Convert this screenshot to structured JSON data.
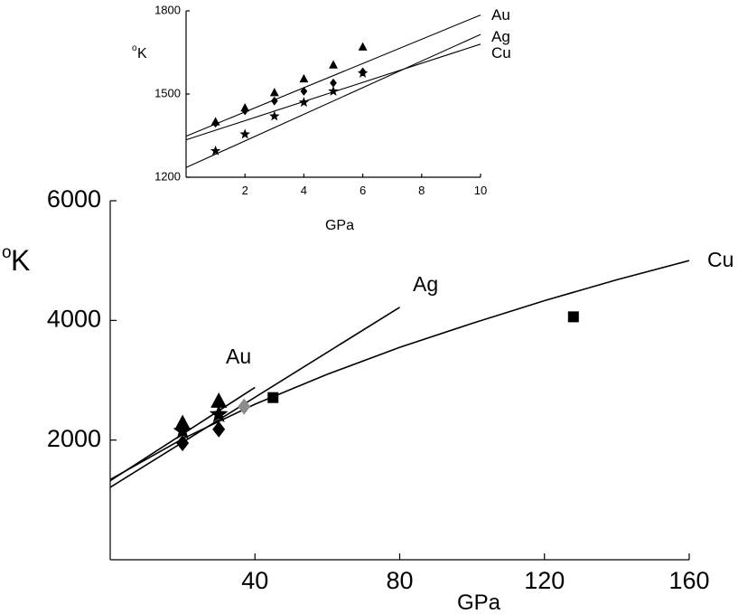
{
  "colors": {
    "ink": "#000000",
    "grey_marker": "#8c8c8c",
    "background": "#ffffff"
  },
  "chart_data": [
    {
      "id": "main",
      "type": "scatter",
      "title": "",
      "xlabel": "GPa",
      "ylabel_superscript": "o",
      "ylabel": "K",
      "xlim": [
        0,
        160
      ],
      "ylim": [
        0,
        6000
      ],
      "x_ticks": [
        40,
        80,
        120,
        160
      ],
      "y_ticks": [
        2000,
        4000,
        6000
      ],
      "x_tick_labels": [
        "40",
        "80",
        "120",
        "160"
      ],
      "y_tick_labels": [
        "2000",
        "4000",
        "6000"
      ],
      "grid": false,
      "lines": [
        {
          "name": "Au",
          "label": "Au",
          "x": [
            0,
            40
          ],
          "y": [
            1320,
            2880
          ]
        },
        {
          "name": "Ag",
          "label": "Ag",
          "x": [
            0,
            80
          ],
          "y": [
            1210,
            4220
          ]
        },
        {
          "name": "Cu",
          "label": "Cu",
          "x": [
            0,
            20,
            40,
            60,
            80,
            100,
            120,
            140,
            160
          ],
          "y": [
            1340,
            2020,
            2600,
            3100,
            3550,
            3950,
            4330,
            4680,
            5000
          ]
        }
      ],
      "series": [
        {
          "name": "triangles",
          "marker": "triangle",
          "color": "#000000",
          "x": [
            20,
            30
          ],
          "y": [
            2280,
            2650
          ]
        },
        {
          "name": "stars",
          "marker": "star",
          "color": "#000000",
          "x": [
            20,
            30
          ],
          "y": [
            2150,
            2430
          ]
        },
        {
          "name": "diamonds",
          "marker": "diamond",
          "color": "#000000",
          "x": [
            20,
            30
          ],
          "y": [
            1950,
            2180
          ]
        },
        {
          "name": "grey diamond",
          "marker": "diamond",
          "color": "#8c8c8c",
          "x": [
            37
          ],
          "y": [
            2560
          ]
        },
        {
          "name": "squares",
          "marker": "square",
          "color": "#000000",
          "x": [
            45,
            128
          ],
          "y": [
            2710,
            4060
          ]
        }
      ]
    },
    {
      "id": "inset",
      "type": "scatter",
      "title": "",
      "xlabel": "GPa",
      "ylabel_superscript": "o",
      "ylabel": "K",
      "xlim": [
        0,
        10
      ],
      "ylim": [
        1200,
        1800
      ],
      "x_ticks": [
        2,
        4,
        6,
        8,
        10
      ],
      "y_ticks": [
        1200,
        1500,
        1800
      ],
      "x_tick_labels": [
        "2",
        "4",
        "6",
        "8",
        "10"
      ],
      "y_tick_labels": [
        "1200",
        "1500",
        "1800"
      ],
      "grid": false,
      "lines": [
        {
          "name": "Au",
          "label": "Au",
          "x": [
            0,
            10
          ],
          "y": [
            1348,
            1785
          ]
        },
        {
          "name": "Ag",
          "label": "Ag",
          "x": [
            0,
            10
          ],
          "y": [
            1235,
            1715
          ]
        },
        {
          "name": "Cu",
          "label": "Cu",
          "x": [
            0,
            10
          ],
          "y": [
            1335,
            1680
          ]
        }
      ],
      "series": [
        {
          "name": "triangles",
          "marker": "triangle",
          "color": "#000000",
          "x": [
            1,
            2,
            3,
            4,
            5,
            6
          ],
          "y": [
            1400,
            1450,
            1505,
            1555,
            1605,
            1670
          ]
        },
        {
          "name": "diamonds",
          "marker": "diamond",
          "color": "#000000",
          "x": [
            1,
            2,
            3,
            4,
            5,
            6
          ],
          "y": [
            1395,
            1440,
            1475,
            1510,
            1540,
            1580
          ]
        },
        {
          "name": "stars",
          "marker": "star",
          "color": "#000000",
          "x": [
            1,
            2,
            3,
            4,
            5,
            6
          ],
          "y": [
            1295,
            1355,
            1420,
            1470,
            1510,
            1575
          ]
        }
      ]
    }
  ]
}
